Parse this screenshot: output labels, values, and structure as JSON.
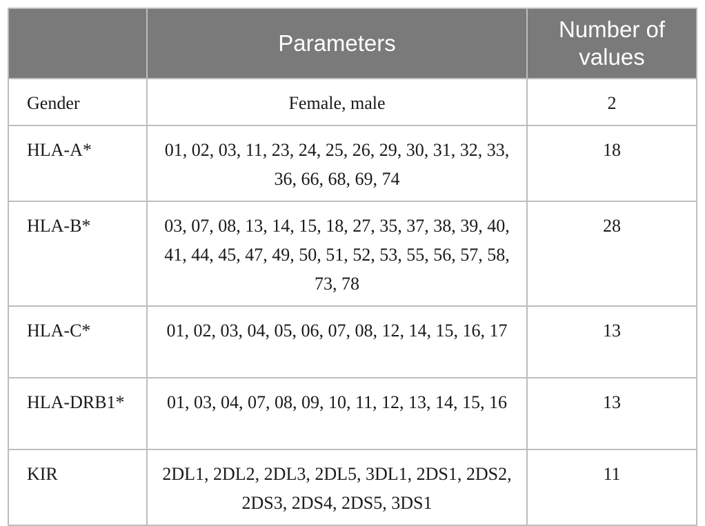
{
  "table": {
    "headers": [
      "",
      "Parameters",
      "Number of values"
    ],
    "rows": [
      {
        "name": "Gender",
        "values": "Female, male",
        "count": "2"
      },
      {
        "name": "HLA-A*",
        "values": "01, 02, 03, 11, 23, 24, 25, 26, 29, 30, 31, 32, 33, 36, 66, 68, 69, 74",
        "count": "18"
      },
      {
        "name": "HLA-B*",
        "values": "03, 07, 08, 13, 14, 15, 18, 27, 35, 37, 38, 39, 40, 41, 44, 45, 47, 49, 50, 51, 52, 53, 55, 56, 57, 58, 73, 78",
        "count": "28"
      },
      {
        "name": "HLA-C*",
        "values": "01, 02, 03, 04, 05, 06, 07, 08, 12, 14, 15, 16, 17",
        "count": "13"
      },
      {
        "name": "HLA-DRB1*",
        "values": "01, 03, 04, 07, 08, 09, 10, 11, 12, 13, 14, 15, 16",
        "count": "13"
      },
      {
        "name": "KIR",
        "values": "2DL1, 2DL2, 2DL3, 2DL5, 3DL1, 2DS1, 2DS2, 2DS3, 2DS4, 2DS5, 3DS1",
        "count": "11"
      }
    ]
  }
}
